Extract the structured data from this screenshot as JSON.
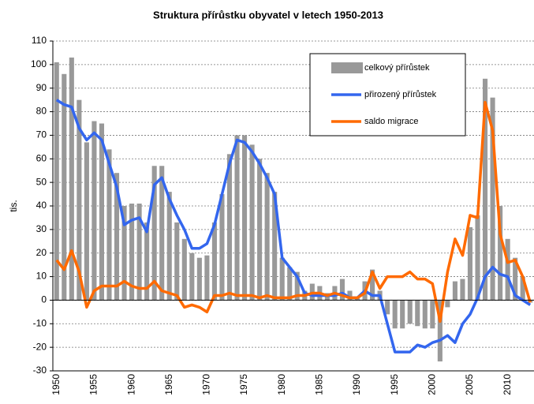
{
  "chart_data": {
    "type": "bar_line",
    "title": "Struktura přírůstku obyvatel v letech 1950-2013",
    "y_label": "tis.",
    "categories": [
      "1950",
      null,
      null,
      null,
      null,
      "1955",
      null,
      null,
      null,
      null,
      "1960",
      null,
      null,
      null,
      null,
      "1965",
      null,
      null,
      null,
      null,
      "1970",
      null,
      null,
      null,
      null,
      "1975",
      null,
      null,
      null,
      null,
      "1980",
      null,
      null,
      null,
      null,
      "1985",
      null,
      null,
      null,
      null,
      "1990",
      null,
      null,
      null,
      null,
      "1995",
      null,
      null,
      null,
      null,
      "2000",
      null,
      null,
      null,
      null,
      "2005",
      null,
      null,
      null,
      null,
      "2010",
      null,
      null,
      null
    ],
    "series": [
      {
        "name": "celkový přírůstek",
        "kind": "bar",
        "color": "#999999",
        "values": [
          101,
          96,
          103,
          85,
          67,
          76,
          75,
          64,
          54,
          40,
          41,
          41,
          33,
          57,
          57,
          46,
          33,
          26,
          20,
          18,
          19,
          33,
          45,
          62,
          70,
          70,
          66,
          60,
          54,
          46,
          18,
          14,
          12,
          4,
          7,
          6,
          3,
          6,
          9,
          4,
          1,
          8,
          13,
          4,
          -6,
          -12,
          -12,
          -10,
          -11,
          -12,
          -12,
          -26,
          -3,
          8,
          9,
          31,
          36,
          94,
          86,
          40,
          26,
          18,
          10,
          -1
        ]
      },
      {
        "name": "přirozený přírůstek",
        "kind": "line",
        "color": "#3366ee",
        "values": [
          85,
          83,
          82,
          73,
          68,
          71,
          68,
          58,
          48,
          32,
          34,
          35,
          29,
          49,
          52,
          43,
          36,
          30,
          22,
          22,
          24,
          32,
          45,
          58,
          68,
          67,
          63,
          58,
          52,
          45,
          18,
          14,
          10,
          3,
          2,
          2,
          2,
          2,
          3,
          1,
          1,
          4,
          2,
          2,
          -10,
          -22,
          -22,
          -22,
          -19,
          -20,
          -18,
          -17,
          -15,
          -18,
          -10,
          -6,
          1,
          10,
          14,
          11,
          10,
          2,
          0,
          -2
        ]
      },
      {
        "name": "saldo migrace",
        "kind": "line",
        "color": "#ff6a00",
        "values": [
          17,
          13,
          21,
          12,
          -3,
          4,
          6,
          6,
          6,
          8,
          6,
          5,
          5,
          8,
          4,
          3,
          2,
          -3,
          -2,
          -3,
          -5,
          2,
          2,
          3,
          2,
          2,
          2,
          1,
          2,
          1,
          1,
          1,
          2,
          2,
          3,
          3,
          2,
          3,
          2,
          1,
          1,
          3,
          12,
          5,
          10,
          10,
          10,
          12,
          9,
          9,
          7,
          -9,
          12,
          26,
          19,
          36,
          35,
          84,
          72,
          28,
          16,
          17,
          10,
          -1
        ]
      }
    ],
    "ylim": [
      -30,
      110
    ],
    "yticks": [
      -30,
      -20,
      -10,
      0,
      10,
      20,
      30,
      40,
      50,
      60,
      70,
      80,
      90,
      100,
      110
    ],
    "grid": true
  }
}
